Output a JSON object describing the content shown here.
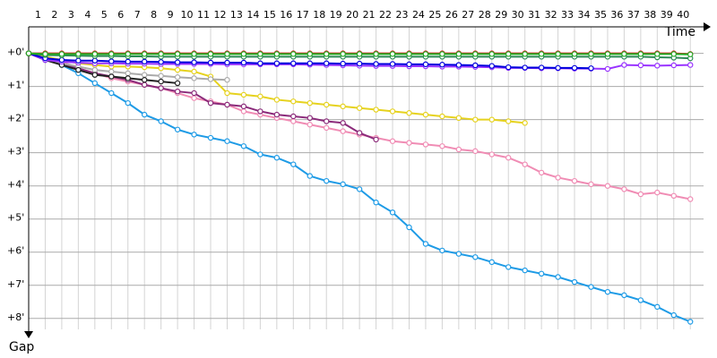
{
  "chart_data": {
    "type": "line",
    "x_label": "Time",
    "y_label": "Gap",
    "x": [
      0,
      1,
      2,
      3,
      4,
      5,
      6,
      7,
      8,
      9,
      10,
      11,
      12,
      13,
      14,
      15,
      16,
      17,
      18,
      19,
      20,
      21,
      22,
      23,
      24,
      25,
      26,
      27,
      28,
      29,
      30,
      31,
      32,
      33,
      34,
      35,
      36,
      37,
      38,
      39,
      40
    ],
    "xlim": [
      0,
      40.8
    ],
    "xticks": [
      1,
      2,
      3,
      4,
      5,
      6,
      7,
      8,
      9,
      10,
      11,
      12,
      13,
      14,
      15,
      16,
      17,
      18,
      19,
      20,
      21,
      22,
      23,
      24,
      25,
      26,
      27,
      28,
      29,
      30,
      31,
      32,
      33,
      34,
      35,
      36,
      37,
      38,
      39,
      40
    ],
    "ylim": [
      -0.8,
      8.6
    ],
    "yticks": [
      {
        "value": 0,
        "label": "+0'"
      },
      {
        "value": 1,
        "label": "+1'"
      },
      {
        "value": 2,
        "label": "+2'"
      },
      {
        "value": 3,
        "label": "+3'"
      },
      {
        "value": 4,
        "label": "+4'"
      },
      {
        "value": 5,
        "label": "+5'"
      },
      {
        "value": 6,
        "label": "+6'"
      },
      {
        "value": 7,
        "label": "+7'"
      },
      {
        "value": 8,
        "label": "+8'"
      }
    ],
    "grid": true,
    "series": [
      {
        "color": "#1e9be6",
        "values": [
          0,
          0.15,
          0.35,
          0.6,
          0.9,
          1.2,
          1.5,
          1.85,
          2.05,
          2.3,
          2.45,
          2.55,
          2.65,
          2.8,
          3.05,
          3.15,
          3.35,
          3.7,
          3.85,
          3.95,
          4.1,
          4.5,
          4.8,
          5.25,
          5.75,
          5.95,
          6.05,
          6.15,
          6.3,
          6.45,
          6.55,
          6.65,
          6.75,
          6.9,
          7.05,
          7.2,
          7.3,
          7.45,
          7.65,
          7.9,
          8.1
        ]
      },
      {
        "color": "#f08cb4",
        "values": [
          0,
          0.1,
          0.25,
          0.45,
          0.6,
          0.75,
          0.85,
          0.95,
          1.05,
          1.2,
          1.35,
          1.45,
          1.55,
          1.75,
          1.85,
          1.95,
          2.05,
          2.15,
          2.25,
          2.35,
          2.45,
          2.55,
          2.65,
          2.7,
          2.75,
          2.8,
          2.9,
          2.95,
          3.05,
          3.15,
          3.35,
          3.6,
          3.75,
          3.85,
          3.95,
          4.0,
          4.1,
          4.25,
          4.2,
          4.3,
          4.4
        ]
      },
      {
        "color": "#e6d21e",
        "values": [
          0,
          0.1,
          0.2,
          0.3,
          0.35,
          0.4,
          0.4,
          0.42,
          0.45,
          0.5,
          0.55,
          0.7,
          1.2,
          1.25,
          1.3,
          1.4,
          1.45,
          1.5,
          1.55,
          1.6,
          1.65,
          1.7,
          1.75,
          1.8,
          1.85,
          1.9,
          1.95,
          2.0,
          2.0,
          2.05,
          2.1,
          null,
          null,
          null,
          null,
          null,
          null,
          null,
          null,
          null,
          null
        ]
      },
      {
        "color": "#8b2a7a",
        "values": [
          0,
          0.15,
          0.3,
          0.45,
          0.6,
          0.7,
          0.8,
          0.95,
          1.05,
          1.15,
          1.2,
          1.5,
          1.55,
          1.6,
          1.75,
          1.85,
          1.9,
          1.95,
          2.05,
          2.1,
          2.4,
          2.6,
          null,
          null,
          null,
          null,
          null,
          null,
          null,
          null,
          null,
          null,
          null,
          null,
          null,
          null,
          null,
          null,
          null,
          null,
          null
        ]
      },
      {
        "color": "#aaaaaa",
        "values": [
          0,
          0.15,
          0.3,
          0.4,
          0.5,
          0.55,
          0.6,
          0.65,
          0.68,
          0.72,
          0.75,
          0.78,
          0.8,
          null,
          null,
          null,
          null,
          null,
          null,
          null,
          null,
          null,
          null,
          null,
          null,
          null,
          null,
          null,
          null,
          null,
          null,
          null,
          null,
          null,
          null,
          null,
          null,
          null,
          null,
          null,
          null
        ]
      },
      {
        "color": "#222222",
        "values": [
          0,
          0.2,
          0.35,
          0.5,
          0.65,
          0.7,
          0.75,
          0.8,
          0.85,
          0.9,
          null,
          null,
          null,
          null,
          null,
          null,
          null,
          null,
          null,
          null,
          null,
          null,
          null,
          null,
          null,
          null,
          null,
          null,
          null,
          null,
          null,
          null,
          null,
          null,
          null,
          null,
          null,
          null,
          null,
          null,
          null
        ]
      },
      {
        "color": "#9933ff",
        "values": [
          0,
          0.2,
          0.25,
          0.28,
          0.3,
          0.3,
          0.31,
          0.31,
          0.32,
          0.32,
          0.32,
          0.32,
          0.33,
          0.33,
          0.33,
          0.33,
          0.33,
          0.34,
          0.35,
          0.36,
          0.37,
          0.38,
          0.38,
          0.39,
          0.39,
          0.4,
          0.4,
          0.41,
          0.42,
          0.44,
          0.44,
          0.45,
          0.45,
          0.46,
          0.46,
          0.47,
          0.35,
          0.36,
          0.37,
          0.36,
          0.35
        ]
      },
      {
        "color": "#0000dd",
        "values": [
          0,
          0.15,
          0.2,
          0.22,
          0.22,
          0.24,
          0.25,
          0.25,
          0.26,
          0.27,
          0.27,
          0.28,
          0.28,
          0.28,
          0.3,
          0.3,
          0.3,
          0.3,
          0.3,
          0.31,
          0.31,
          0.32,
          0.32,
          0.33,
          0.33,
          0.34,
          0.35,
          0.36,
          0.38,
          0.42,
          0.43,
          0.43,
          0.44,
          0.44,
          0.45,
          null,
          null,
          null,
          null,
          null,
          null
        ]
      },
      {
        "color": "#2e8b57",
        "values": [
          0,
          0.05,
          0.06,
          0.07,
          0.08,
          0.08,
          0.09,
          0.09,
          0.1,
          0.1,
          0.1,
          0.1,
          0.1,
          0.1,
          0.1,
          0.1,
          0.1,
          0.1,
          0.1,
          0.1,
          0.1,
          0.1,
          0.1,
          0.1,
          0.1,
          0.1,
          0.1,
          0.1,
          0.1,
          0.1,
          0.1,
          0.1,
          0.1,
          0.1,
          0.1,
          0.1,
          0.1,
          0.1,
          0.12,
          0.13,
          0.15
        ]
      },
      {
        "color": "#dd2222",
        "values": [
          0,
          0,
          0,
          0,
          0,
          0,
          0,
          0,
          0,
          0,
          0,
          0,
          0,
          0,
          0,
          0,
          0,
          0,
          0,
          0,
          0,
          0,
          0,
          0,
          0,
          0,
          0,
          0,
          0,
          0,
          0,
          0,
          0,
          0,
          0,
          0,
          0,
          0,
          0,
          0,
          0.02
        ]
      },
      {
        "color": "#22aa22",
        "values": [
          0,
          0.02,
          0.02,
          0.02,
          0.02,
          0.02,
          0.02,
          0.02,
          0.02,
          0.02,
          0.02,
          0.02,
          0.02,
          0.02,
          0.02,
          0.02,
          0.02,
          0.02,
          0.02,
          0.02,
          0.02,
          0.02,
          0.02,
          0.02,
          0.02,
          0.02,
          0.02,
          0.02,
          0.02,
          0.02,
          0.02,
          0.02,
          0.02,
          0.02,
          0.02,
          0.02,
          0.02,
          0.02,
          0.02,
          0.02,
          0.03
        ]
      }
    ]
  }
}
